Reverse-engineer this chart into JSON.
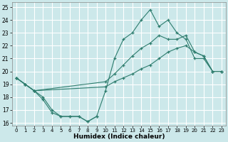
{
  "xlabel": "Humidex (Indice chaleur)",
  "bg_color": "#cce8ea",
  "grid_color": "#ffffff",
  "line_color": "#2e7d6e",
  "xlim": [
    -0.5,
    23.5
  ],
  "ylim": [
    15.8,
    25.4
  ],
  "xticks": [
    0,
    1,
    2,
    3,
    4,
    5,
    6,
    7,
    8,
    9,
    10,
    11,
    12,
    13,
    14,
    15,
    16,
    17,
    18,
    19,
    20,
    21,
    22,
    23
  ],
  "yticks": [
    16,
    17,
    18,
    19,
    20,
    21,
    22,
    23,
    24,
    25
  ],
  "line1_x": [
    0,
    1,
    2,
    3,
    4,
    5,
    6,
    7,
    8,
    9
  ],
  "line1_y": [
    19.5,
    19.0,
    18.5,
    17.8,
    16.8,
    16.5,
    16.5,
    16.5,
    16.1,
    16.5
  ],
  "line2_x": [
    0,
    1,
    2,
    3,
    4,
    5,
    6,
    7,
    8,
    9,
    10,
    11,
    12,
    13,
    14,
    15,
    16,
    17,
    18,
    19,
    20,
    21,
    22,
    23
  ],
  "line2_y": [
    19.5,
    19.0,
    18.5,
    18.0,
    17.0,
    16.5,
    16.5,
    16.5,
    16.1,
    16.5,
    18.5,
    21.0,
    22.5,
    23.0,
    24.0,
    24.8,
    23.5,
    24.0,
    23.0,
    22.5,
    21.0,
    21.0,
    20.0,
    20.0
  ],
  "line3_x": [
    0,
    1,
    2,
    10,
    11,
    12,
    13,
    14,
    15,
    16,
    17,
    18,
    19,
    20,
    21,
    22,
    23
  ],
  "line3_y": [
    19.5,
    19.0,
    18.5,
    19.2,
    19.8,
    20.5,
    21.2,
    21.8,
    22.2,
    22.8,
    22.5,
    22.5,
    22.8,
    21.5,
    21.2,
    20.0,
    20.0
  ],
  "line4_x": [
    0,
    1,
    2,
    10,
    11,
    12,
    13,
    14,
    15,
    16,
    17,
    18,
    19,
    20,
    21,
    22,
    23
  ],
  "line4_y": [
    19.5,
    19.0,
    18.5,
    18.8,
    19.2,
    19.5,
    19.8,
    20.2,
    20.5,
    21.0,
    21.5,
    21.8,
    22.0,
    21.5,
    21.2,
    20.0,
    20.0
  ]
}
